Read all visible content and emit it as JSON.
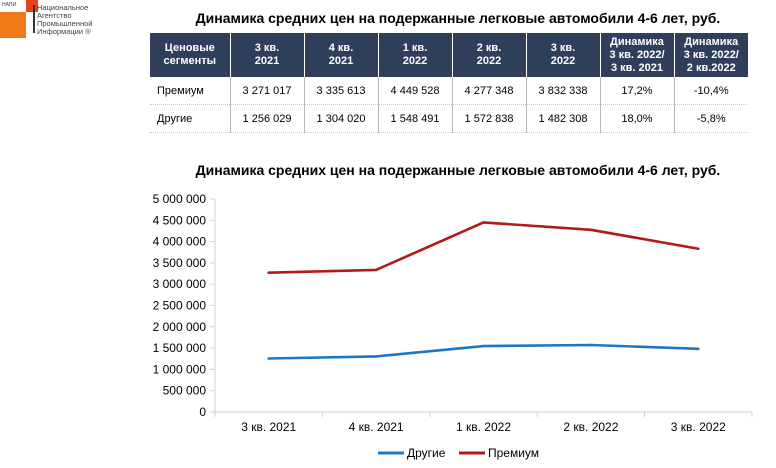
{
  "logo": {
    "abbr": "НАПИ",
    "lines": [
      "Национальное",
      "Агентство",
      "Промышленной",
      "Информации ®"
    ]
  },
  "table": {
    "title": "Динамика средних цен на подержанные легковые автомобили 4-6 лет, руб.",
    "headers": [
      [
        "Ценовые",
        "сегменты"
      ],
      [
        "3 кв.",
        "2021"
      ],
      [
        "4 кв.",
        "2021"
      ],
      [
        "1 кв.",
        "2022"
      ],
      [
        "2 кв.",
        "2022"
      ],
      [
        "3 кв.",
        "2022"
      ],
      [
        "Динамика",
        "3 кв. 2022/",
        "3 кв. 2021"
      ],
      [
        "Динамика",
        "3 кв. 2022/",
        "2 кв.2022"
      ]
    ],
    "rows": [
      [
        "Премиум",
        "3 271 017",
        "3 335 613",
        "4 449 528",
        "4 277 348",
        "3 832 338",
        "17,2%",
        "-10,4%"
      ],
      [
        "Другие",
        "1 256 029",
        "1 304 020",
        "1 548 491",
        "1 572 838",
        "1 482 308",
        "18,0%",
        "-5,8%"
      ]
    ]
  },
  "chart_data": {
    "type": "line",
    "title": "Динамика средних цен на подержанные легковые автомобили 4-6 лет, руб.",
    "categories": [
      "3 кв. 2021",
      "4 кв. 2021",
      "1 кв. 2022",
      "2 кв. 2022",
      "3 кв. 2022"
    ],
    "series": [
      {
        "name": "Другие",
        "color": "#1f77c4",
        "values": [
          1256029,
          1304020,
          1548491,
          1572838,
          1482308
        ]
      },
      {
        "name": "Премиум",
        "color": "#b01a1a",
        "values": [
          3271017,
          3335613,
          4449528,
          4277348,
          3832338
        ]
      }
    ],
    "yticks": [
      "0",
      "500 000",
      "1 000 000",
      "1 500 000",
      "2 000 000",
      "2 500 000",
      "3 000 000",
      "3 500 000",
      "4 000 000",
      "4 500 000",
      "5 000 000"
    ],
    "ylim": [
      0,
      5000000
    ],
    "xlabel": "",
    "ylabel": "",
    "legend": "bottom-center",
    "grid": false
  }
}
